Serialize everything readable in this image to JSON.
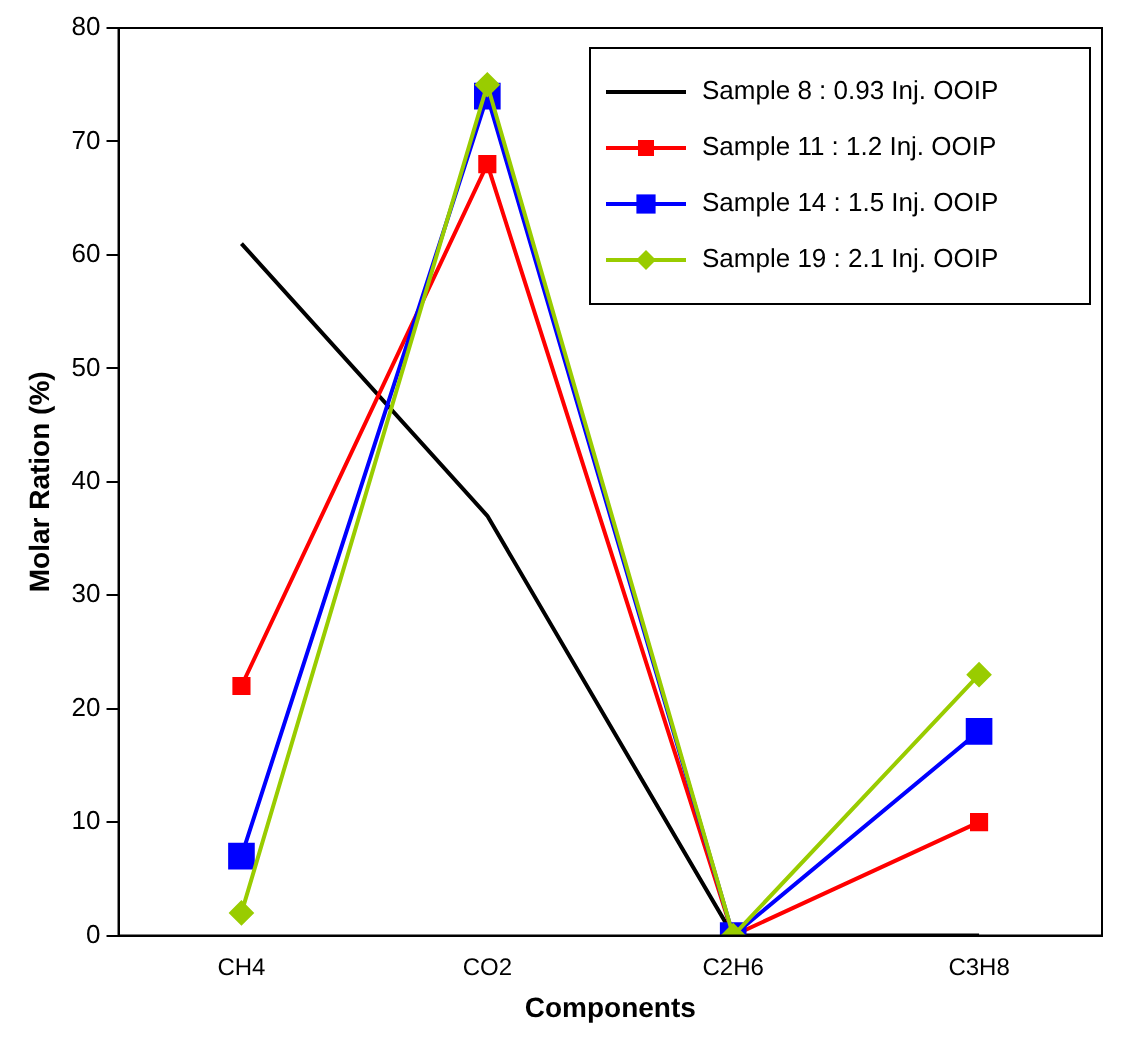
{
  "chart_data": {
    "type": "line",
    "xlabel": "Components",
    "ylabel": "Molar Ration (%)",
    "categories": [
      "CH4",
      "CO2",
      "C2H6",
      "C3H8"
    ],
    "ylim": [
      0,
      80
    ],
    "yticks": [
      0,
      10,
      20,
      30,
      40,
      50,
      60,
      70,
      80
    ],
    "grid": false,
    "legend": "top right",
    "series": [
      {
        "name": "Sample 8 : 0.93 Inj. OOIP",
        "color": "#000000",
        "marker": "none",
        "values": [
          61,
          37,
          0,
          0
        ]
      },
      {
        "name": "Sample 11 : 1.2 Inj. OOIP",
        "color": "#ff0000",
        "marker": "square",
        "values": [
          22,
          68,
          0,
          10
        ]
      },
      {
        "name": "Sample 14 : 1.5 Inj. OOIP",
        "color": "#0000ff",
        "marker": "square",
        "values": [
          7,
          74,
          0,
          18
        ]
      },
      {
        "name": "Sample 19 : 2.1 Inj. OOIP",
        "color": "#99cc00",
        "marker": "diamond",
        "values": [
          2,
          75,
          0,
          23
        ]
      }
    ]
  }
}
